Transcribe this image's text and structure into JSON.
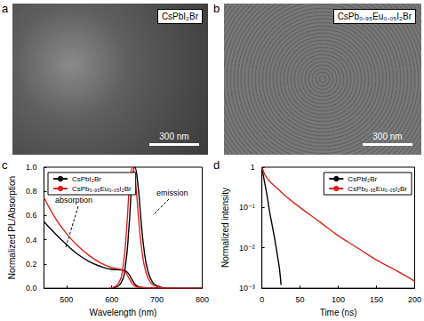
{
  "panels": [
    {
      "letter": "a",
      "label": "CsPbI₂Br",
      "scale_bar": "300 nm"
    },
    {
      "letter": "b",
      "label": "CsPb₀.₉₅Eu₀.₀₅I₂Br",
      "scale_bar": "300 nm"
    }
  ],
  "chart_data": [
    {
      "panel": "c",
      "type": "line",
      "x_label": "Wavelength (nm)",
      "y_label": "Normalized PL/Absorption",
      "xlim": [
        450,
        800
      ],
      "xticks": [
        500,
        600,
        700,
        800
      ],
      "ylim": [
        0,
        1
      ],
      "yticks": [
        {
          "value": 0,
          "label": "0.0"
        },
        0.2,
        0.4,
        0.6,
        0.8,
        {
          "value": 1,
          "label": "1.0"
        }
      ],
      "legend": "upper left",
      "grid": false,
      "annotations": [
        "absorption",
        "emission"
      ],
      "series": [
        {
          "name": "CsPbI₂Br",
          "color": "#000000",
          "absorption": [
            [
              450,
              0.55
            ],
            [
              475,
              0.45
            ],
            [
              500,
              0.36
            ],
            [
              525,
              0.28
            ],
            [
              550,
              0.22
            ],
            [
              575,
              0.18
            ],
            [
              600,
              0.155
            ],
            [
              625,
              0.15
            ],
            [
              635,
              0.13
            ],
            [
              645,
              0.07
            ],
            [
              655,
              0.02
            ],
            [
              670,
              0.005
            ],
            [
              700,
              0.0
            ],
            [
              800,
              0.0
            ]
          ],
          "emission": [
            [
              600,
              0.0
            ],
            [
              620,
              0.04
            ],
            [
              630,
              0.18
            ],
            [
              638,
              0.5
            ],
            [
              645,
              0.88
            ],
            [
              651,
              1.0
            ],
            [
              658,
              0.85
            ],
            [
              665,
              0.55
            ],
            [
              672,
              0.3
            ],
            [
              680,
              0.14
            ],
            [
              690,
              0.05
            ],
            [
              700,
              0.02
            ],
            [
              720,
              0.0
            ]
          ]
        },
        {
          "name": "CsPb₀.₉₅Eu₀.₀₅I₂Br",
          "color": "#e0201b",
          "absorption": [
            [
              450,
              0.75
            ],
            [
              475,
              0.58
            ],
            [
              500,
              0.45
            ],
            [
              525,
              0.35
            ],
            [
              550,
              0.27
            ],
            [
              575,
              0.21
            ],
            [
              600,
              0.17
            ],
            [
              620,
              0.155
            ],
            [
              630,
              0.13
            ],
            [
              640,
              0.07
            ],
            [
              650,
              0.02
            ],
            [
              665,
              0.005
            ],
            [
              700,
              0.0
            ],
            [
              800,
              0.0
            ]
          ],
          "emission": [
            [
              595,
              0.0
            ],
            [
              615,
              0.04
            ],
            [
              625,
              0.18
            ],
            [
              633,
              0.5
            ],
            [
              640,
              0.88
            ],
            [
              646,
              1.0
            ],
            [
              653,
              0.85
            ],
            [
              660,
              0.55
            ],
            [
              667,
              0.3
            ],
            [
              675,
              0.14
            ],
            [
              685,
              0.05
            ],
            [
              695,
              0.02
            ],
            [
              715,
              0.0
            ]
          ]
        }
      ]
    },
    {
      "panel": "d",
      "type": "line",
      "log": "y",
      "x_label": "Time (ns)",
      "y_label": "Normalized intensity",
      "xlim": [
        0,
        200
      ],
      "xticks": [
        0,
        50,
        100,
        150,
        200
      ],
      "ylim": [
        0.001,
        1
      ],
      "yticks": [
        {
          "value": 0.001,
          "label": "10⁻³"
        },
        {
          "value": 0.01,
          "label": "10⁻²"
        },
        {
          "value": 0.1,
          "label": "10⁻¹"
        },
        1
      ],
      "legend": "upper right",
      "grid": false,
      "series": [
        {
          "name": "CsPbI₂Br",
          "color": "#000000",
          "points": [
            [
              0,
              1
            ],
            [
              2,
              0.6
            ],
            [
              5,
              0.3
            ],
            [
              8,
              0.14
            ],
            [
              10,
              0.08
            ],
            [
              13,
              0.04
            ],
            [
              15,
              0.025
            ],
            [
              18,
              0.012
            ],
            [
              20,
              0.007
            ],
            [
              23,
              0.003
            ],
            [
              25,
              0.0012
            ]
          ]
        },
        {
          "name": "CsPb₀.₉₅Eu₀.₀₅I₂Br",
          "color": "#e0201b",
          "points": [
            [
              0,
              1
            ],
            [
              3,
              0.7
            ],
            [
              5,
              0.6
            ],
            [
              10,
              0.45
            ],
            [
              20,
              0.3
            ],
            [
              30,
              0.2
            ],
            [
              40,
              0.14
            ],
            [
              50,
              0.1
            ],
            [
              75,
              0.045
            ],
            [
              100,
              0.02
            ],
            [
              125,
              0.01
            ],
            [
              150,
              0.005
            ],
            [
              175,
              0.0028
            ],
            [
              200,
              0.0015
            ]
          ]
        }
      ]
    }
  ]
}
